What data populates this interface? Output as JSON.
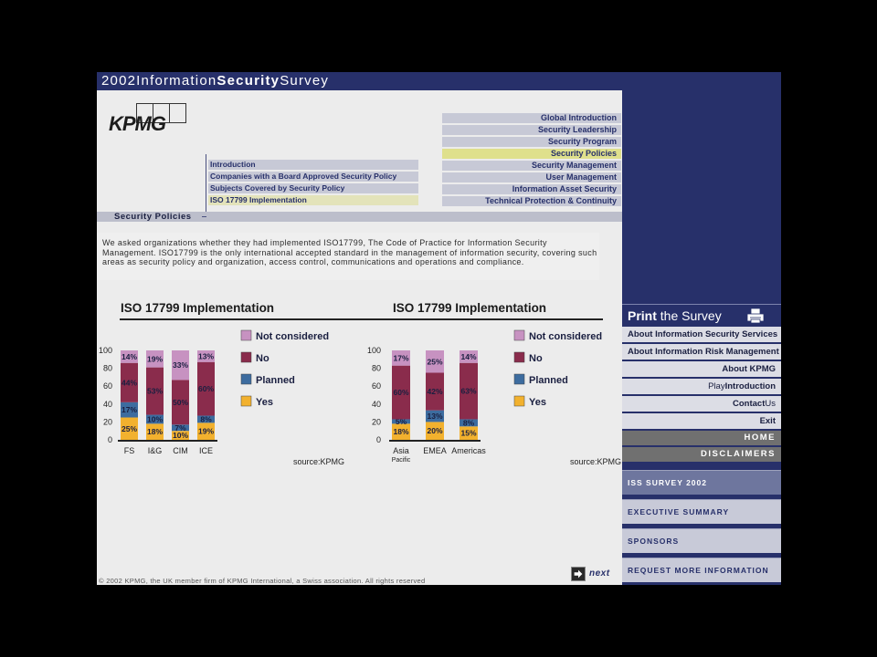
{
  "header": {
    "title_part1": "2002",
    "title_part2": "Information",
    "title_part3": "Security",
    "title_part4": "Survey"
  },
  "logo": {
    "text": "KPMG"
  },
  "main_nav": [
    {
      "label": "Global Introduction",
      "active": false
    },
    {
      "label": "Security Leadership",
      "active": false
    },
    {
      "label": "Security Program",
      "active": false
    },
    {
      "label": "Security Policies",
      "active": true
    },
    {
      "label": "Security Management",
      "active": false
    },
    {
      "label": "User Management",
      "active": false
    },
    {
      "label": "Information Asset Security",
      "active": false
    },
    {
      "label": "Technical Protection & Continuity",
      "active": false
    }
  ],
  "sub_nav": [
    {
      "label": "Introduction",
      "active": false
    },
    {
      "label": "Companies with a Board Approved Security Policy",
      "active": false
    },
    {
      "label": "Subjects Covered by Security Policy",
      "active": false
    },
    {
      "label": "ISO 17799 Implementation",
      "active": true
    }
  ],
  "section_title": "Security Policies",
  "intro_text": "We asked organizations whether they had implemented ISO17799, The Code of Practice for Information Security Management. ISO17799 is the only international accepted standard in the management of information security, covering such areas as security policy and organization, access control, communications and operations and compliance.",
  "colors": {
    "not_considered": "#c792c1",
    "no": "#8a2c4c",
    "planned": "#3d6c9f",
    "yes": "#f2b12e",
    "nav_dark": "#27306a"
  },
  "chart_data": [
    {
      "type": "bar",
      "stacked": true,
      "title": "ISO 17799 Implementation",
      "source": "source:KPMG",
      "categories": [
        "FS",
        "I&G",
        "CIM",
        "ICE"
      ],
      "ylim": [
        0,
        100
      ],
      "yticks": [
        "0",
        "20",
        "40",
        "60",
        "80",
        "100"
      ],
      "legend_placement": "right",
      "series": [
        {
          "name": "Yes",
          "color": "#f2b12e",
          "values": [
            25,
            18,
            10,
            19
          ],
          "labels": [
            "25%",
            "18%",
            "10%",
            "19%"
          ]
        },
        {
          "name": "Planned",
          "color": "#3d6c9f",
          "values": [
            17,
            10,
            7,
            8
          ],
          "labels": [
            "17%",
            "10%",
            "7%",
            "8%"
          ]
        },
        {
          "name": "No",
          "color": "#8a2c4c",
          "values": [
            44,
            53,
            50,
            60
          ],
          "labels": [
            "44%",
            "53%",
            "50%",
            "60%"
          ]
        },
        {
          "name": "Not considered",
          "color": "#c792c1",
          "values": [
            14,
            19,
            33,
            13
          ],
          "labels": [
            "14%",
            "19%",
            "33%",
            "13%"
          ]
        }
      ]
    },
    {
      "type": "bar",
      "stacked": true,
      "title": "ISO 17799 Implementation",
      "source": "source:KPMG",
      "categories": [
        "Asia",
        "EMEA",
        "Americas"
      ],
      "category_sublabels": [
        "Pacific",
        "",
        ""
      ],
      "ylim": [
        0,
        100
      ],
      "yticks": [
        "0",
        "20",
        "40",
        "60",
        "80",
        "100"
      ],
      "legend_placement": "right",
      "series": [
        {
          "name": "Yes",
          "color": "#f2b12e",
          "values": [
            18,
            20,
            15
          ],
          "labels": [
            "18%",
            "20%",
            "15%"
          ]
        },
        {
          "name": "Planned",
          "color": "#3d6c9f",
          "values": [
            5,
            13,
            8
          ],
          "labels": [
            "5%",
            "13%",
            "8%"
          ]
        },
        {
          "name": "No",
          "color": "#8a2c4c",
          "values": [
            60,
            42,
            63
          ],
          "labels": [
            "60%",
            "42%",
            "63%"
          ]
        },
        {
          "name": "Not considered",
          "color": "#c792c1",
          "values": [
            17,
            25,
            14
          ],
          "labels": [
            "17%",
            "25%",
            "14%"
          ]
        }
      ]
    }
  ],
  "print": {
    "part1": "Print",
    "part2": "the Survey",
    "icon": "printer-icon"
  },
  "side_links": [
    {
      "label": "About Information Security Services"
    },
    {
      "label": "About Information Risk Management"
    },
    {
      "label": "About KPMG"
    },
    {
      "label_a": "Play",
      "label_b": "Introduction"
    },
    {
      "label_a": "Contact",
      "label_b": "Us"
    },
    {
      "label": "Exit"
    }
  ],
  "side_dark": [
    "HOME",
    "DISCLAIMERS"
  ],
  "bottom_buttons": [
    "ISS SURVEY 2002",
    "EXECUTIVE SUMMARY",
    "SPONSORS",
    "REQUEST MORE INFORMATION"
  ],
  "footer": "© 2002 KPMG, the UK member firm of KPMG International, a Swiss association. All rights reserved",
  "next": {
    "label": "next",
    "icon": "arrow-right-icon"
  }
}
